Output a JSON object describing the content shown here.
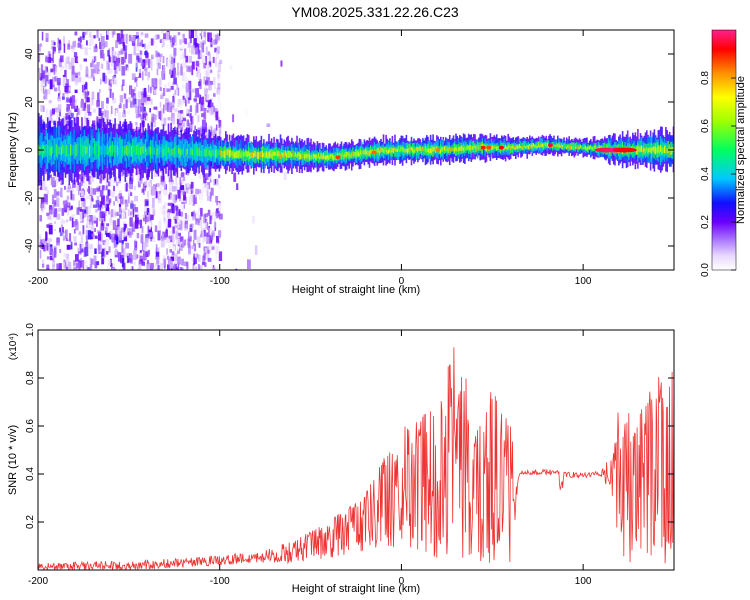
{
  "title": "YM08.2025.331.22.26.C23",
  "chart_data": [
    {
      "type": "heatmap",
      "name": "spectrogram",
      "xlabel": "Height of straight line (km)",
      "ylabel": "Frequency (Hz)",
      "xlim": [
        -200,
        150
      ],
      "ylim": [
        -50,
        50
      ],
      "xticks": [
        -200,
        -100,
        0,
        100
      ],
      "yticks": [
        -40,
        -20,
        0,
        20,
        40
      ],
      "colorbar": {
        "label": "Normalized spectral amplitude",
        "range": [
          0.0,
          1.0
        ],
        "ticks": [
          "0.0",
          "0.2",
          "0.4",
          "0.6",
          "0.8"
        ]
      },
      "ridge_center_hz": [
        [
          -200,
          0
        ],
        [
          -150,
          0
        ],
        [
          -110,
          -1
        ],
        [
          -80,
          -2
        ],
        [
          -60,
          -2
        ],
        [
          -40,
          -3
        ],
        [
          -20,
          -1
        ],
        [
          0,
          0
        ],
        [
          20,
          0
        ],
        [
          40,
          1
        ],
        [
          60,
          1
        ],
        [
          80,
          2
        ],
        [
          100,
          1
        ],
        [
          120,
          0
        ],
        [
          150,
          0
        ]
      ],
      "ridge_width_hz": [
        [
          -200,
          12
        ],
        [
          -150,
          10
        ],
        [
          -110,
          8
        ],
        [
          -100,
          7
        ],
        [
          -60,
          6
        ],
        [
          -40,
          5
        ],
        [
          0,
          5
        ],
        [
          40,
          5
        ],
        [
          60,
          4
        ],
        [
          100,
          3
        ],
        [
          120,
          6
        ],
        [
          150,
          8
        ]
      ]
    },
    {
      "type": "line",
      "name": "snr",
      "xlabel": "Height of straight line (km)",
      "ylabel": "SNR (10 * v/v)",
      "yscale_note": "(x10⁴)",
      "xlim": [
        -200,
        150
      ],
      "ylim": [
        0,
        1.0
      ],
      "xticks": [
        -200,
        -100,
        0,
        100
      ],
      "yticks": [
        "0.2",
        "0.4",
        "0.6",
        "0.8",
        "1.0"
      ],
      "color": "#ee3333",
      "envelope": {
        "x": [
          -200,
          -150,
          -120,
          -100,
          -80,
          -60,
          -40,
          -20,
          0,
          10,
          20,
          30,
          40,
          50,
          55,
          60,
          65,
          80,
          90,
          100,
          110,
          120,
          130,
          140,
          150
        ],
        "low": [
          0.0,
          0.0,
          0.01,
          0.02,
          0.03,
          0.03,
          0.05,
          0.08,
          0.1,
          0.08,
          0.05,
          0.05,
          0.03,
          0.03,
          0.05,
          0.02,
          0.39,
          0.38,
          0.37,
          0.37,
          0.37,
          0.05,
          0.02,
          0.02,
          0.03
        ],
        "high": [
          0.03,
          0.04,
          0.05,
          0.06,
          0.08,
          0.12,
          0.2,
          0.32,
          0.6,
          0.62,
          0.75,
          0.95,
          0.7,
          0.75,
          0.68,
          0.6,
          0.42,
          0.43,
          0.42,
          0.42,
          0.42,
          0.7,
          0.65,
          0.8,
          0.85
        ]
      }
    }
  ]
}
